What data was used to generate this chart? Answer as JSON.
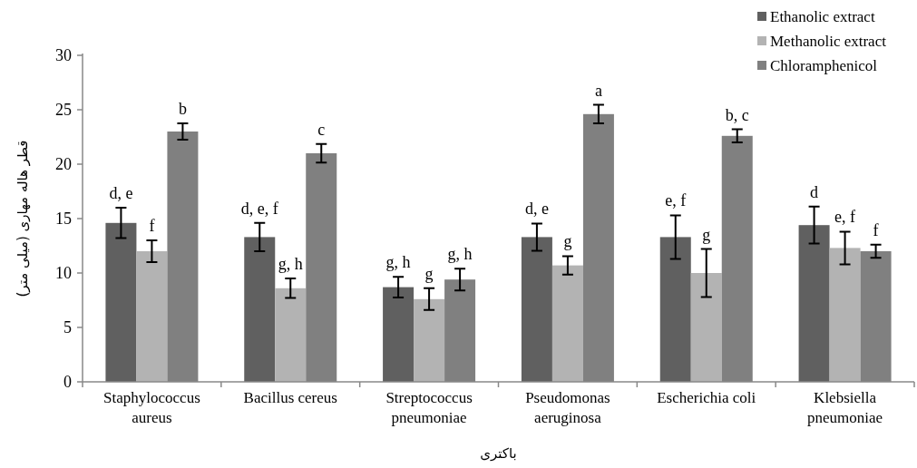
{
  "chart_data": {
    "type": "bar",
    "xlabel": "باکتری",
    "ylabel": "قطر هاله مهاری (میلی متر)",
    "categories": [
      "Staphylococcus aureus",
      "Bacillus cereus",
      "Streptococcus pneumoniae",
      "Pseudomonas aeruginosa",
      "Escherichia coli",
      "Klebsiella pneumoniae"
    ],
    "series": [
      {
        "name": "Ethanolic extract",
        "color": "#606060",
        "values": [
          14.6,
          13.3,
          8.7,
          13.3,
          13.3,
          14.4
        ],
        "errors": [
          1.4,
          1.3,
          0.95,
          1.25,
          2.0,
          1.7
        ],
        "value_labels": [
          "d, e",
          "d, e, f",
          "g, h",
          "d, e",
          "e, f",
          "d"
        ]
      },
      {
        "name": "Methanolic extract",
        "color": "#b3b3b3",
        "values": [
          12.0,
          8.6,
          7.6,
          10.7,
          10.0,
          12.3
        ],
        "errors": [
          1.0,
          0.9,
          1.0,
          0.85,
          2.2,
          1.5
        ],
        "value_labels": [
          "f",
          "g, h",
          "g",
          "g",
          "g",
          "e, f"
        ]
      },
      {
        "name": "Chloramphenicol",
        "color": "#808080",
        "values": [
          23.0,
          21.0,
          9.4,
          24.6,
          22.6,
          12.0
        ],
        "errors": [
          0.75,
          0.85,
          1.0,
          0.85,
          0.6,
          0.6
        ],
        "value_labels": [
          "b",
          "c",
          "g, h",
          "a",
          "b, c",
          "f"
        ]
      }
    ],
    "ylim": [
      0,
      30
    ],
    "yticks": [
      0,
      5,
      10,
      15,
      20,
      25,
      30
    ],
    "grid": false,
    "legend": "top right"
  }
}
